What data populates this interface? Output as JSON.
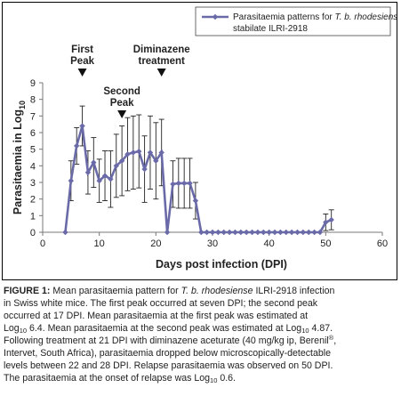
{
  "chart_data": {
    "type": "line",
    "title": "",
    "xlabel": "Days post infection (DPI)",
    "ylabel_main": "Parasitaemia in Log",
    "ylabel_sub": "10",
    "xlim": [
      0,
      60
    ],
    "ylim": [
      0,
      9
    ],
    "x_ticks": [
      0,
      10,
      20,
      30,
      40,
      50,
      60
    ],
    "y_ticks": [
      0,
      1,
      2,
      3,
      4,
      5,
      6,
      7,
      8,
      9
    ],
    "grid": false,
    "legend_position": "top-right",
    "color": "#6a6aa8",
    "series": [
      {
        "name_prefix": "Parasitaemia patterns for ",
        "name_italic": "T. b. rhodesiense",
        "name_line2": "stabilate ILRI-2918",
        "x": [
          4,
          5,
          6,
          7,
          8,
          9,
          10,
          11,
          12,
          13,
          14,
          15,
          16,
          17,
          18,
          19,
          20,
          21,
          22,
          23,
          24,
          25,
          26,
          27,
          28,
          29,
          30,
          31,
          32,
          33,
          34,
          35,
          36,
          37,
          38,
          39,
          40,
          41,
          42,
          43,
          44,
          45,
          46,
          47,
          48,
          49,
          50,
          51
        ],
        "y": [
          0,
          3.1,
          5.2,
          6.4,
          3.6,
          4.2,
          3.1,
          3.4,
          3.2,
          4.0,
          4.3,
          4.7,
          4.8,
          4.87,
          3.8,
          4.8,
          4.3,
          4.8,
          0,
          2.9,
          2.95,
          2.95,
          2.95,
          1.9,
          0,
          0,
          0,
          0,
          0,
          0,
          0,
          0,
          0,
          0,
          0,
          0,
          0,
          0,
          0,
          0,
          0,
          0,
          0,
          0,
          0,
          0,
          0.6,
          0.75
        ],
        "error": [
          0,
          1.2,
          1.1,
          1.2,
          1.3,
          1.5,
          1.3,
          1.5,
          1.7,
          1.9,
          2.1,
          2.2,
          2.2,
          2.2,
          2.0,
          2.2,
          2.3,
          2.0,
          0,
          1.4,
          1.5,
          1.5,
          1.5,
          1.1,
          0,
          0,
          0,
          0,
          0,
          0,
          0,
          0,
          0,
          0,
          0,
          0,
          0,
          0,
          0,
          0,
          0,
          0,
          0,
          0,
          0,
          0,
          0.5,
          0.6
        ]
      }
    ],
    "annotations": [
      {
        "id": "first-peak",
        "lines": [
          "First",
          "Peak"
        ],
        "x": 7
      },
      {
        "id": "second-peak",
        "lines": [
          "Second",
          "Peak"
        ],
        "x": 14
      },
      {
        "id": "treatment",
        "lines": [
          "Diminazene",
          "treatment"
        ],
        "x": 21
      }
    ]
  },
  "caption": {
    "label": "FIGURE 1:",
    "lines": [
      [
        {
          "t": "FIGURE 1:",
          "s": "bold"
        },
        {
          "t": " Mean parasitaemia pattern for "
        },
        {
          "t": "T. b. rhodesiense",
          "s": "ital"
        },
        {
          "t": " ILRI-2918 infection"
        }
      ],
      [
        {
          "t": "in Swiss white mice. The first peak occurred at seven DPI; the second peak"
        }
      ],
      [
        {
          "t": "occurred at 17 DPI. Mean parasitaemia at the first peak was estimated at"
        }
      ],
      [
        {
          "t": "Log"
        },
        {
          "t": "10",
          "s": "sub"
        },
        {
          "t": " 6.4. Mean parasitaemia at the second peak was estimated at Log"
        },
        {
          "t": "10",
          "s": "sub"
        },
        {
          "t": " 4.87."
        }
      ],
      [
        {
          "t": "Following treatment at 21 DPI with diminazene aceturate (40 mg/kg ip, Berenil"
        },
        {
          "t": "®",
          "s": "sup"
        },
        {
          "t": ","
        }
      ],
      [
        {
          "t": "Intervet, South Africa), parasitaemia dropped below microscopically-detectable"
        }
      ],
      [
        {
          "t": "levels between 22 and 28 DPI. Relapse parasitaemia was observed on 50 DPI."
        }
      ],
      [
        {
          "t": "The parasitaemia at the onset of relapse was Log"
        },
        {
          "t": "10",
          "s": "sub"
        },
        {
          "t": " 0.6."
        }
      ]
    ]
  }
}
